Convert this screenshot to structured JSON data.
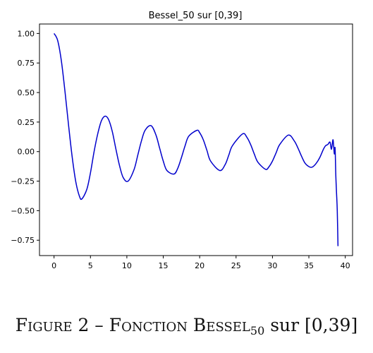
{
  "chart_data": {
    "type": "line",
    "title": "Bessel_50 sur [0,39]",
    "xlabel": "",
    "ylabel": "",
    "xlim": [
      -2,
      41
    ],
    "ylim": [
      -0.88,
      1.08
    ],
    "xticks": [
      0,
      5,
      10,
      15,
      20,
      25,
      30,
      35,
      40
    ],
    "xtick_labels": [
      "0",
      "5",
      "10",
      "15",
      "20",
      "25",
      "30",
      "35",
      "40"
    ],
    "yticks": [
      -0.75,
      -0.5,
      -0.25,
      0.0,
      0.25,
      0.5,
      0.75,
      1.0
    ],
    "ytick_labels": [
      "−0.75",
      "−0.50",
      "−0.25",
      "0.00",
      "0.25",
      "0.50",
      "0.75",
      "1.00"
    ],
    "grid": false,
    "line_color": "#0000cc",
    "series": [
      {
        "x": [
          0,
          0.5,
          1,
          1.5,
          2,
          2.5,
          3,
          3.5,
          3.83,
          4.5,
          5,
          5.5,
          6,
          6.5,
          7.02,
          7.5,
          8,
          8.5,
          9,
          9.5,
          10.17,
          11,
          11.5,
          12,
          12.5,
          13.32,
          14,
          14.5,
          15,
          15.5,
          16.47,
          17,
          17.5,
          18,
          18.5,
          19.62,
          20,
          20.5,
          21,
          21.5,
          22.76,
          23.5,
          24,
          24.5,
          25.9,
          26.5,
          27,
          27.5,
          28,
          29.05,
          29.5,
          30,
          30.5,
          31,
          32.19,
          33,
          33.5,
          34,
          34.5,
          35.1,
          35.5,
          36,
          36.5,
          37,
          37.3,
          37.6,
          37.9,
          38.1,
          38.3,
          38.4,
          38.5,
          38.6,
          38.7,
          38.8,
          38.9,
          39
        ],
        "y": [
          1.0,
          0.94,
          0.77,
          0.51,
          0.22,
          -0.05,
          -0.26,
          -0.38,
          -0.4,
          -0.32,
          -0.18,
          0.0,
          0.15,
          0.26,
          0.3,
          0.27,
          0.17,
          0.02,
          -0.12,
          -0.22,
          -0.25,
          -0.15,
          -0.03,
          0.09,
          0.18,
          0.22,
          0.14,
          0.03,
          -0.08,
          -0.16,
          -0.19,
          -0.14,
          -0.05,
          0.05,
          0.13,
          0.18,
          0.16,
          0.1,
          0.01,
          -0.08,
          -0.16,
          -0.11,
          -0.03,
          0.05,
          0.15,
          0.12,
          0.06,
          -0.02,
          -0.09,
          -0.15,
          -0.13,
          -0.08,
          -0.01,
          0.06,
          0.14,
          0.09,
          0.03,
          -0.04,
          -0.1,
          -0.13,
          -0.13,
          -0.1,
          -0.05,
          0.02,
          0.05,
          0.06,
          0.08,
          0.02,
          0.1,
          0.05,
          -0.02,
          0.03,
          -0.2,
          -0.35,
          -0.5,
          -0.8
        ]
      }
    ]
  },
  "caption": {
    "prefix": "Figure 2 – Fonction Bessel",
    "subscript": "50",
    "suffix": " sur [0,39]"
  }
}
